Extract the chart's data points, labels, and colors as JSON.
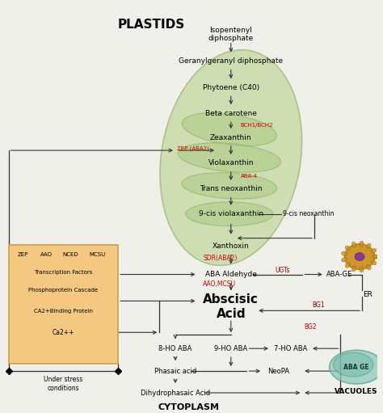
{
  "title": "PLASTIDS",
  "subtitle": "CYTOPLASM",
  "bg_color": "#f0f0eb",
  "plastid_color": "#b8d090",
  "stress_box_color": "#f5c882",
  "stress_box_edge": "#c8a050",
  "stress_footer": "Under stress\nconditions",
  "nine_cis_neo": "9-cis neoxanthin",
  "red_color": "#cc0000",
  "dark_red": "#8B0000"
}
